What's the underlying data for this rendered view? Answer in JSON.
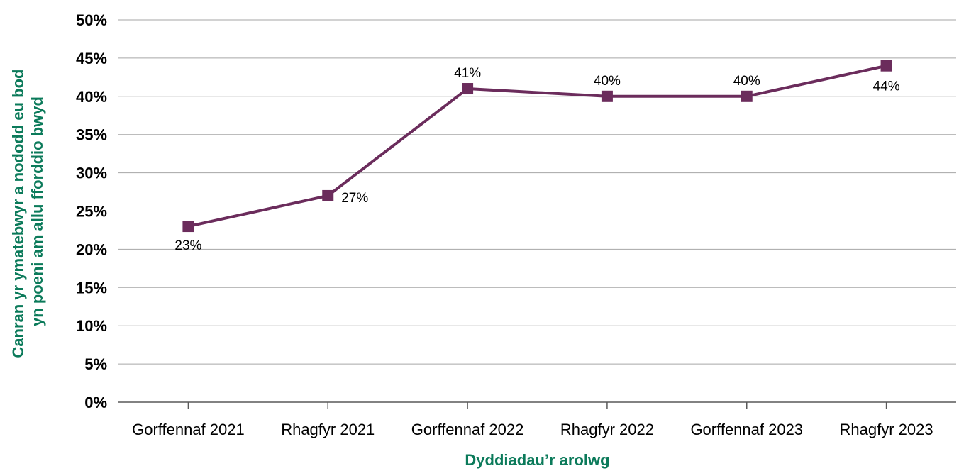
{
  "chart_data": {
    "type": "line",
    "categories": [
      "Gorffennaf 2021",
      "Rhagfyr 2021",
      "Gorffennaf 2022",
      "Rhagfyr 2022",
      "Gorffennaf 2023",
      "Rhagfyr 2023"
    ],
    "series": [
      {
        "values": [
          23,
          27,
          41,
          40,
          40,
          44
        ],
        "color": "#6b2c5c"
      }
    ],
    "data_labels": [
      "23%",
      "27%",
      "41%",
      "40%",
      "40%",
      "44%"
    ],
    "xlabel": "Dyddiadau’r arolwg",
    "ylabel_lines": [
      "Canran yr ymatebwyr a nododd eu bod",
      "yn poeni am allu fforddio bwyd"
    ],
    "ylim": [
      0,
      50
    ],
    "yticks": [
      0,
      5,
      10,
      15,
      20,
      25,
      30,
      35,
      40,
      45,
      50
    ],
    "ytick_labels": [
      "0%",
      "5%",
      "10%",
      "15%",
      "20%",
      "25%",
      "30%",
      "35%",
      "40%",
      "45%",
      "50%"
    ],
    "grid": true,
    "axis_title_color": "#0b7a5a",
    "gridline_color": "#a6a6a6",
    "marker": "square"
  }
}
